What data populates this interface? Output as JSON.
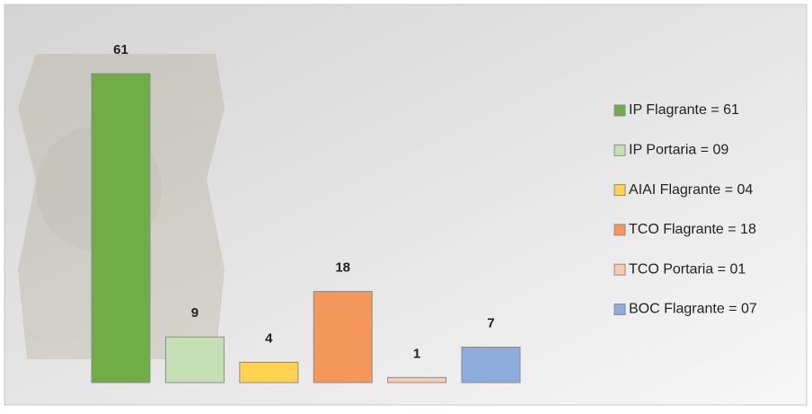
{
  "chart_data": {
    "type": "bar",
    "series": [
      {
        "name": "IP Flagrante = 61",
        "color": "#70ad47",
        "values": [
          61
        ]
      },
      {
        "name": "IP Portaria = 09",
        "color": "#c5e0b4",
        "values": [
          9
        ]
      },
      {
        "name": "AIAI Flagrante = 04",
        "color": "#ffd34f",
        "values": [
          4
        ]
      },
      {
        "name": "TCO Flagrante = 18",
        "color": "#f4975a",
        "values": [
          18
        ]
      },
      {
        "name": "TCO Portaria = 01",
        "color": "#f8cbad",
        "values": [
          1
        ]
      },
      {
        "name": "BOC Flagrante = 07",
        "color": "#8faadc",
        "values": [
          7
        ]
      }
    ]
  }
}
